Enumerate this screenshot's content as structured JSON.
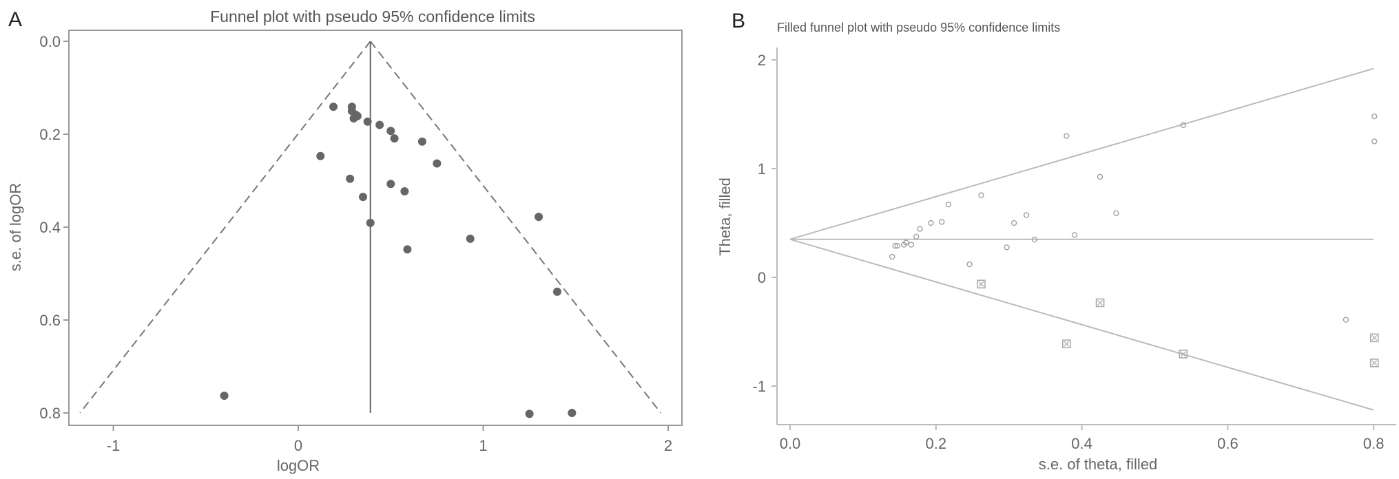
{
  "panels": {
    "a_label": "A",
    "b_label": "B"
  },
  "chart_data": [
    {
      "type": "scatter",
      "title": "Funnel plot with pseudo 95% confidence limits",
      "xlabel": "logOR",
      "ylabel": "s.e. of logOR",
      "xlim": [
        -1.25,
        2.05
      ],
      "ylim": [
        0.0,
        0.8
      ],
      "y_reversed": true,
      "xticks": [
        -1,
        0,
        1,
        2
      ],
      "xtick_labels": [
        "-1",
        "0",
        "1",
        "2"
      ],
      "yticks": [
        0,
        0.2,
        0.4,
        0.6,
        0.8
      ],
      "ytick_labels": [
        "0.0",
        "0.2",
        "0.4",
        "0.6",
        "0.8"
      ],
      "grid": false,
      "pooled_estimate": 0.39,
      "confidence_limits": {
        "apex": [
          0.39,
          0.0
        ],
        "lower_end": [
          -1.18,
          0.8
        ],
        "upper_end": [
          1.96,
          0.8
        ],
        "style": "dashed"
      },
      "marker_color": "#666666",
      "points": [
        [
          0.19,
          0.141
        ],
        [
          0.29,
          0.141
        ],
        [
          0.29,
          0.15
        ],
        [
          0.31,
          0.158
        ],
        [
          0.3,
          0.166
        ],
        [
          0.32,
          0.161
        ],
        [
          0.375,
          0.173
        ],
        [
          0.44,
          0.18
        ],
        [
          0.5,
          0.193
        ],
        [
          0.52,
          0.209
        ],
        [
          0.67,
          0.216
        ],
        [
          0.12,
          0.247
        ],
        [
          0.75,
          0.263
        ],
        [
          0.28,
          0.296
        ],
        [
          0.5,
          0.307
        ],
        [
          0.575,
          0.323
        ],
        [
          0.35,
          0.335
        ],
        [
          0.39,
          0.391
        ],
        [
          0.93,
          0.425
        ],
        [
          0.59,
          0.448
        ],
        [
          -0.4,
          0.763
        ],
        [
          1.25,
          0.802
        ],
        [
          1.3,
          0.378
        ],
        [
          1.4,
          0.539
        ],
        [
          1.48,
          0.8
        ]
      ]
    },
    {
      "type": "scatter",
      "title": "Filled funnel plot with pseudo 95% confidence limits",
      "xlabel": "s.e. of theta, filled",
      "ylabel": "Theta, filled",
      "xlim": [
        -0.02,
        0.82
      ],
      "ylim": [
        -1.3,
        2.1
      ],
      "xticks": [
        0,
        0.2,
        0.4,
        0.6,
        0.8
      ],
      "xtick_labels": [
        "0.0",
        "0.2",
        "0.4",
        "0.6",
        "0.8"
      ],
      "yticks": [
        -1,
        0,
        1,
        2
      ],
      "ytick_labels": [
        "-1",
        "0",
        "1",
        "2"
      ],
      "grid": false,
      "pooled_estimate": 0.35,
      "confidence_limits": {
        "apex": [
          0.0,
          0.35
        ],
        "upper_end": [
          0.8,
          1.92
        ],
        "lower_end": [
          0.8,
          -1.22
        ],
        "style": "solid"
      },
      "line_color": "#bbbbbb",
      "series": [
        {
          "marker": "hollow-circle",
          "color": "#999999",
          "points": [
            [
              0.14,
              0.19
            ],
            [
              0.144,
              0.29
            ],
            [
              0.147,
              0.29
            ],
            [
              0.156,
              0.3
            ],
            [
              0.159,
              0.32
            ],
            [
              0.166,
              0.3
            ],
            [
              0.173,
              0.375
            ],
            [
              0.178,
              0.446
            ],
            [
              0.193,
              0.5
            ],
            [
              0.208,
              0.51
            ],
            [
              0.217,
              0.67
            ],
            [
              0.246,
              0.12
            ],
            [
              0.262,
              0.755
            ],
            [
              0.297,
              0.276
            ],
            [
              0.307,
              0.5
            ],
            [
              0.324,
              0.573
            ],
            [
              0.335,
              0.347
            ],
            [
              0.379,
              1.3
            ],
            [
              0.39,
              0.39
            ],
            [
              0.425,
              0.925
            ],
            [
              0.447,
              0.59
            ],
            [
              0.539,
              1.4
            ],
            [
              0.762,
              -0.39
            ],
            [
              0.801,
              1.48
            ],
            [
              0.801,
              1.25
            ]
          ]
        },
        {
          "marker": "crossed-square",
          "color": "#aaaaaa",
          "points": [
            [
              0.262,
              -0.062
            ],
            [
              0.379,
              -0.612
            ],
            [
              0.425,
              -0.234
            ],
            [
              0.539,
              -0.705
            ],
            [
              0.801,
              -0.556
            ],
            [
              0.801,
              -0.787
            ]
          ]
        }
      ]
    }
  ]
}
